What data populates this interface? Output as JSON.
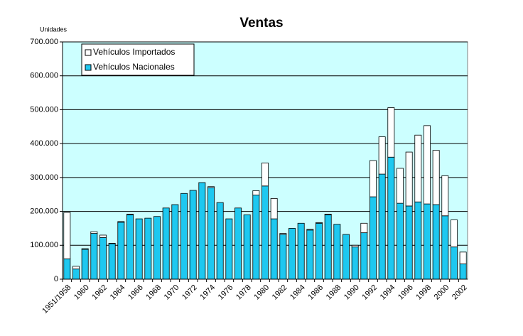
{
  "chart_data": {
    "type": "stacked_bar",
    "title": "Ventas",
    "y_label": "Unidades",
    "categories": [
      "1951/1958",
      null,
      "1960",
      null,
      "1962",
      null,
      "1964",
      null,
      "1966",
      null,
      "1968",
      null,
      "1970",
      null,
      "1972",
      null,
      "1974",
      null,
      "1976",
      null,
      "1978",
      null,
      "1980",
      null,
      "1982",
      null,
      "1984",
      null,
      "1986",
      null,
      "1988",
      null,
      "1990",
      null,
      "1992",
      null,
      "1994",
      null,
      "1996",
      null,
      "1998",
      null,
      "2000",
      null,
      "2002"
    ],
    "series": [
      {
        "name": "Vehículos Nacionales",
        "color": "#1ec8f0",
        "values": [
          60000,
          30000,
          88000,
          135000,
          123000,
          105000,
          168000,
          190000,
          178000,
          180000,
          185000,
          210000,
          220000,
          253000,
          262000,
          285000,
          270000,
          226000,
          178000,
          210000,
          190000,
          248000,
          275000,
          178000,
          132000,
          150000,
          165000,
          145000,
          165000,
          190000,
          162000,
          132000,
          95000,
          137000,
          243000,
          310000,
          360000,
          224000,
          216000,
          228000,
          222000,
          220000,
          187000,
          95000,
          45000
        ]
      },
      {
        "name": "Vehículos Importados",
        "color": "#ffffff",
        "values": [
          137000,
          8000,
          2000,
          5000,
          7000,
          1000,
          2000,
          2000,
          0,
          0,
          0,
          0,
          0,
          0,
          0,
          0,
          3000,
          0,
          0,
          0,
          0,
          13000,
          68000,
          60000,
          3000,
          0,
          0,
          2000,
          2000,
          2000,
          0,
          0,
          5000,
          28000,
          107000,
          110000,
          146000,
          103000,
          159000,
          197000,
          231000,
          160000,
          118000,
          80000,
          35000
        ]
      }
    ],
    "ylim": [
      0,
      700000
    ],
    "yticks": [
      0,
      {
        "value": 100000,
        "label": "100.000"
      },
      {
        "value": 200000,
        "label": "200.000"
      },
      {
        "value": 300000,
        "label": "300.000"
      },
      {
        "value": 400000,
        "label": "400.000"
      },
      {
        "value": 500000,
        "label": "500.000"
      },
      {
        "value": 600000,
        "label": "600.000"
      },
      {
        "value": 700000,
        "label": "700.000"
      }
    ],
    "grid": true,
    "legend": "top-left",
    "plot_background": "#ccffff"
  }
}
